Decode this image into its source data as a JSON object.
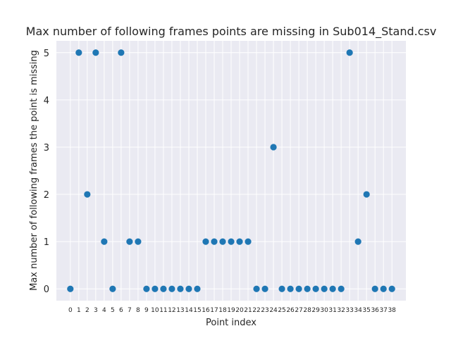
{
  "chart_data": {
    "type": "scatter",
    "title": "Max number of following frames points are missing in Sub014_Stand.csv",
    "xlabel": "Point index",
    "ylabel": "Max number of following frames the point is missing",
    "x": [
      0,
      1,
      2,
      3,
      4,
      5,
      6,
      7,
      8,
      9,
      10,
      11,
      12,
      13,
      14,
      15,
      16,
      17,
      18,
      19,
      20,
      21,
      22,
      23,
      24,
      25,
      26,
      27,
      28,
      29,
      30,
      31,
      32,
      33,
      34,
      35,
      36,
      37,
      38
    ],
    "y": [
      0,
      5,
      2,
      5,
      1,
      0,
      5,
      1,
      1,
      0,
      0,
      0,
      0,
      0,
      0,
      0,
      1,
      1,
      1,
      1,
      1,
      1,
      0,
      0,
      3,
      0,
      0,
      0,
      0,
      0,
      0,
      0,
      0,
      5,
      1,
      2,
      0,
      0,
      0
    ],
    "xticks": [
      "0",
      "1",
      "2",
      "3",
      "4",
      "5",
      "6",
      "7",
      "8",
      "9",
      "10",
      "11",
      "12",
      "13",
      "14",
      "15",
      "16",
      "17",
      "18",
      "19",
      "20",
      "21",
      "22",
      "23",
      "24",
      "25",
      "26",
      "27",
      "28",
      "29",
      "30",
      "31",
      "32",
      "33",
      "34",
      "35",
      "36",
      "37",
      "38"
    ],
    "yticks": [
      "0",
      "1",
      "2",
      "3",
      "4",
      "5"
    ],
    "xlim": [
      -1.65,
      39.65
    ],
    "ylim": [
      -0.25,
      5.25
    ],
    "grid": true,
    "style": "seaborn-darkgrid",
    "colors": {
      "background": "#eaeaf2",
      "grid": "#ffffff",
      "marker": "#1f77b4",
      "text": "#262626"
    }
  }
}
